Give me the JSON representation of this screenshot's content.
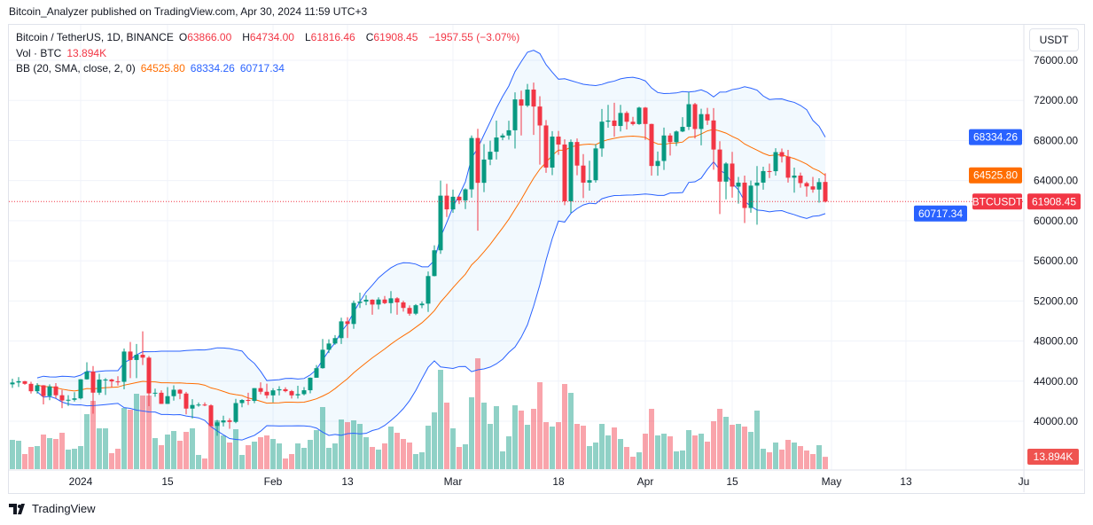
{
  "published": "Bitcoin_Analyzer published on TradingView.com, Apr 30, 2024 11:59 UTC+3",
  "legend": {
    "symbol": "Bitcoin / TetherUS, 1D, BINANCE",
    "open_label": "O",
    "open": "63866.00",
    "high_label": "H",
    "high": "64734.00",
    "low_label": "L",
    "low": "61816.46",
    "close_label": "C",
    "close": "61908.45",
    "change": "−1957.55 (−3.07%)",
    "vol_label": "Vol · BTC",
    "vol": "13.894K",
    "bb_label": "BB (20, SMA, close, 2, 0)",
    "bb_basis": "64525.80",
    "bb_upper": "68334.26",
    "bb_lower": "60717.34"
  },
  "currency_button": "USDT",
  "footer": {
    "brand": "TradingView"
  },
  "colors": {
    "up": "#089981",
    "down": "#f23645",
    "bb_band": "#2962ff",
    "bb_basis": "#ff6d00",
    "bb_fill": "#2196f3"
  },
  "price_tags": {
    "symbol": "BTCUSDT",
    "last": "61908.45",
    "upper": "68334.26",
    "basis": "64525.80",
    "lower": "60717.34",
    "volume": "13.894K"
  },
  "chart_data": {
    "type": "candlestick",
    "ylim": [
      38000,
      78000
    ],
    "y_ticks": [
      "76000.00",
      "72000.00",
      "68000.00",
      "64000.00",
      "60000.00",
      "56000.00",
      "52000.00",
      "48000.00",
      "44000.00",
      "40000.00"
    ],
    "x_ticks": [
      {
        "label": "2024",
        "date": "2024-01-01"
      },
      {
        "label": "15",
        "date": "2024-01-15"
      },
      {
        "label": "Feb",
        "date": "2024-02-01"
      },
      {
        "label": "13",
        "date": "2024-02-13"
      },
      {
        "label": "Mar",
        "date": "2024-03-01"
      },
      {
        "label": "18",
        "date": "2024-03-18"
      },
      {
        "label": "Apr",
        "date": "2024-04-01"
      },
      {
        "label": "15",
        "date": "2024-04-15"
      },
      {
        "label": "May",
        "date": "2024-05-01"
      },
      {
        "label": "13",
        "date": "2024-05-13"
      },
      {
        "label": "Ju",
        "date": "2024-06-01"
      }
    ],
    "grid": true,
    "indicator": "Bollinger Bands (20, SMA, close, 2)",
    "volume_unit": "K BTC",
    "candles_columns": [
      "date",
      "open",
      "high",
      "low",
      "close",
      "volume"
    ],
    "candles": [
      [
        "2023-12-21",
        43680,
        44240,
        43330,
        43860,
        33
      ],
      [
        "2023-12-22",
        43860,
        44400,
        43420,
        43990,
        32
      ],
      [
        "2023-12-23",
        43990,
        44020,
        43640,
        43730,
        17
      ],
      [
        "2023-12-24",
        43730,
        43940,
        42760,
        42990,
        25
      ],
      [
        "2023-12-25",
        42990,
        43800,
        42750,
        43580,
        26
      ],
      [
        "2023-12-26",
        43580,
        43600,
        41680,
        42510,
        39
      ],
      [
        "2023-12-27",
        42510,
        43680,
        42100,
        43470,
        35
      ],
      [
        "2023-12-28",
        43470,
        43800,
        42300,
        42590,
        34
      ],
      [
        "2023-12-29",
        42590,
        43130,
        41300,
        42070,
        41
      ],
      [
        "2023-12-30",
        42070,
        42600,
        41520,
        42140,
        22
      ],
      [
        "2023-12-31",
        42140,
        42900,
        41970,
        42280,
        23
      ],
      [
        "2024-01-01",
        42280,
        44200,
        42180,
        44180,
        26
      ],
      [
        "2024-01-02",
        44180,
        45880,
        44150,
        44950,
        62
      ],
      [
        "2024-01-03",
        44950,
        45500,
        40750,
        42850,
        77
      ],
      [
        "2024-01-04",
        42850,
        44730,
        42630,
        44150,
        46
      ],
      [
        "2024-01-05",
        44150,
        44300,
        42620,
        44160,
        46
      ],
      [
        "2024-01-06",
        44160,
        44230,
        43400,
        43970,
        18
      ],
      [
        "2024-01-07",
        43970,
        44490,
        43560,
        43930,
        23
      ],
      [
        "2024-01-08",
        43930,
        47250,
        43180,
        46950,
        69
      ],
      [
        "2024-01-09",
        46950,
        47900,
        44300,
        46110,
        67
      ],
      [
        "2024-01-10",
        46110,
        47700,
        44300,
        46630,
        85
      ],
      [
        "2024-01-11",
        46630,
        48970,
        45600,
        46340,
        83
      ],
      [
        "2024-01-12",
        46340,
        46500,
        41500,
        42780,
        83
      ],
      [
        "2024-01-13",
        42780,
        43250,
        42440,
        42840,
        35
      ],
      [
        "2024-01-14",
        42840,
        43080,
        41720,
        41730,
        27
      ],
      [
        "2024-01-15",
        41730,
        43400,
        41720,
        42500,
        39
      ],
      [
        "2024-01-16",
        42500,
        43580,
        42050,
        43140,
        43
      ],
      [
        "2024-01-17",
        43140,
        43200,
        42200,
        42760,
        32
      ],
      [
        "2024-01-18",
        42760,
        42930,
        40680,
        41260,
        42
      ],
      [
        "2024-01-19",
        41260,
        42200,
        40280,
        41620,
        46
      ],
      [
        "2024-01-20",
        41620,
        41870,
        41450,
        41660,
        16
      ],
      [
        "2024-01-21",
        41660,
        41880,
        41500,
        41580,
        12
      ],
      [
        "2024-01-22",
        41580,
        41690,
        39430,
        39530,
        50
      ],
      [
        "2024-01-23",
        39530,
        40130,
        38550,
        39880,
        55
      ],
      [
        "2024-01-24",
        39880,
        40550,
        39480,
        40080,
        38
      ],
      [
        "2024-01-25",
        40080,
        40300,
        39250,
        39930,
        30
      ],
      [
        "2024-01-26",
        39930,
        42230,
        39800,
        41810,
        45
      ],
      [
        "2024-01-27",
        41810,
        42200,
        41390,
        42120,
        16
      ],
      [
        "2024-01-28",
        42120,
        42840,
        41620,
        42030,
        27
      ],
      [
        "2024-01-29",
        42030,
        43300,
        41800,
        43300,
        31
      ],
      [
        "2024-01-30",
        43300,
        43880,
        42690,
        42940,
        36
      ],
      [
        "2024-01-31",
        42940,
        43750,
        42280,
        42580,
        38
      ],
      [
        "2024-02-01",
        42580,
        43290,
        41880,
        43080,
        34
      ],
      [
        "2024-02-02",
        43080,
        43490,
        42580,
        43190,
        29
      ],
      [
        "2024-02-03",
        43190,
        43380,
        42880,
        43000,
        12
      ],
      [
        "2024-02-04",
        43000,
        43120,
        42260,
        42580,
        17
      ],
      [
        "2024-02-05",
        42580,
        43540,
        42260,
        42700,
        29
      ],
      [
        "2024-02-06",
        42700,
        43400,
        42570,
        43090,
        24
      ],
      [
        "2024-02-07",
        43090,
        44370,
        42780,
        44340,
        33
      ],
      [
        "2024-02-08",
        44340,
        45600,
        44330,
        45290,
        44
      ],
      [
        "2024-02-09",
        45290,
        48200,
        45240,
        47130,
        70
      ],
      [
        "2024-02-10",
        47130,
        48170,
        46800,
        47750,
        24
      ],
      [
        "2024-02-11",
        47750,
        48590,
        47630,
        48290,
        29
      ],
      [
        "2024-02-12",
        48290,
        50330,
        47710,
        49960,
        56
      ],
      [
        "2024-02-13",
        49960,
        50370,
        48300,
        49700,
        53
      ],
      [
        "2024-02-14",
        49700,
        52040,
        49220,
        51800,
        55
      ],
      [
        "2024-02-15",
        51800,
        52820,
        51300,
        51930,
        51
      ],
      [
        "2024-02-16",
        51930,
        52570,
        51570,
        52120,
        36
      ],
      [
        "2024-02-17",
        52120,
        52160,
        50620,
        51640,
        25
      ],
      [
        "2024-02-18",
        51640,
        52360,
        51170,
        52140,
        22
      ],
      [
        "2024-02-19",
        52140,
        52490,
        51680,
        51780,
        29
      ],
      [
        "2024-02-20",
        51780,
        52980,
        50760,
        52260,
        48
      ],
      [
        "2024-02-21",
        52260,
        52370,
        50620,
        51850,
        41
      ],
      [
        "2024-02-22",
        51850,
        52030,
        50930,
        51300,
        34
      ],
      [
        "2024-02-23",
        51300,
        51550,
        50520,
        50730,
        30
      ],
      [
        "2024-02-24",
        50730,
        51690,
        50590,
        51570,
        17
      ],
      [
        "2024-02-25",
        51570,
        51950,
        51280,
        51730,
        19
      ],
      [
        "2024-02-26",
        51730,
        54940,
        50900,
        54480,
        49
      ],
      [
        "2024-02-27",
        54480,
        57550,
        54450,
        57050,
        64
      ],
      [
        "2024-02-28",
        57050,
        64000,
        56690,
        62500,
        112
      ],
      [
        "2024-02-29",
        62500,
        63680,
        60360,
        61130,
        75
      ],
      [
        "2024-03-01",
        61130,
        63110,
        60780,
        62390,
        46
      ],
      [
        "2024-03-02",
        62390,
        62430,
        61660,
        62030,
        25
      ],
      [
        "2024-03-03",
        62030,
        63230,
        61160,
        63130,
        28
      ],
      [
        "2024-03-04",
        63130,
        68500,
        62300,
        68250,
        81
      ],
      [
        "2024-03-05",
        68250,
        69170,
        59000,
        63780,
        125
      ],
      [
        "2024-03-06",
        63780,
        67640,
        62850,
        66100,
        75
      ],
      [
        "2024-03-07",
        66100,
        67980,
        65540,
        66880,
        51
      ],
      [
        "2024-03-08",
        66880,
        69990,
        66100,
        68300,
        71
      ],
      [
        "2024-03-09",
        68300,
        68700,
        68030,
        68500,
        20
      ],
      [
        "2024-03-10",
        68500,
        69970,
        68080,
        69020,
        37
      ],
      [
        "2024-03-11",
        69020,
        72800,
        67200,
        72100,
        72
      ],
      [
        "2024-03-12",
        72100,
        72970,
        68500,
        71480,
        66
      ],
      [
        "2024-03-13",
        71480,
        73650,
        71330,
        73080,
        50
      ],
      [
        "2024-03-14",
        73080,
        73780,
        68560,
        71390,
        68
      ],
      [
        "2024-03-15",
        71390,
        72420,
        65600,
        69500,
        98
      ],
      [
        "2024-03-16",
        69500,
        70040,
        64780,
        65300,
        53
      ],
      [
        "2024-03-17",
        65300,
        68930,
        64550,
        68390,
        48
      ],
      [
        "2024-03-18",
        68390,
        68960,
        66570,
        67600,
        53
      ],
      [
        "2024-03-19",
        67600,
        68120,
        61550,
        61940,
        96
      ],
      [
        "2024-03-20",
        61940,
        68100,
        60780,
        67850,
        86
      ],
      [
        "2024-03-21",
        67850,
        68200,
        64530,
        65500,
        51
      ],
      [
        "2024-03-22",
        65500,
        66650,
        62260,
        63800,
        49
      ],
      [
        "2024-03-23",
        63800,
        65980,
        63000,
        64040,
        26
      ],
      [
        "2024-03-24",
        64040,
        67630,
        63800,
        67210,
        30
      ],
      [
        "2024-03-25",
        67210,
        71150,
        66380,
        69880,
        51
      ],
      [
        "2024-03-26",
        69880,
        71560,
        69280,
        69990,
        38
      ],
      [
        "2024-03-27",
        69990,
        71770,
        68370,
        69450,
        47
      ],
      [
        "2024-03-28",
        69450,
        71550,
        68900,
        70750,
        34
      ],
      [
        "2024-03-29",
        70750,
        70920,
        69100,
        69870,
        25
      ],
      [
        "2024-03-30",
        69870,
        70360,
        69500,
        69640,
        14
      ],
      [
        "2024-03-31",
        69640,
        71370,
        69560,
        71280,
        19
      ],
      [
        "2024-04-01",
        71280,
        71340,
        68060,
        69650,
        40
      ],
      [
        "2024-04-02",
        69650,
        69680,
        64500,
        65460,
        68
      ],
      [
        "2024-04-03",
        65460,
        66900,
        64490,
        65960,
        38
      ],
      [
        "2024-04-04",
        65960,
        69290,
        65070,
        68500,
        40
      ],
      [
        "2024-04-05",
        68500,
        68720,
        66500,
        67840,
        37
      ],
      [
        "2024-04-06",
        67840,
        69000,
        67450,
        68900,
        20
      ],
      [
        "2024-04-07",
        68900,
        70330,
        68840,
        69360,
        21
      ],
      [
        "2024-04-08",
        69360,
        72800,
        69040,
        71620,
        44
      ],
      [
        "2024-04-09",
        71620,
        71750,
        68210,
        69150,
        38
      ],
      [
        "2024-04-10",
        69150,
        71170,
        67520,
        70630,
        40
      ],
      [
        "2024-04-11",
        70630,
        71260,
        69550,
        70000,
        31
      ],
      [
        "2024-04-12",
        70000,
        71230,
        65090,
        67100,
        54
      ],
      [
        "2024-04-13",
        67100,
        67930,
        60660,
        63900,
        68
      ],
      [
        "2024-04-14",
        63900,
        65840,
        62130,
        65700,
        59
      ],
      [
        "2024-04-15",
        65700,
        66870,
        62300,
        63400,
        50
      ],
      [
        "2024-04-16",
        63400,
        64370,
        61700,
        63800,
        51
      ],
      [
        "2024-04-17",
        63800,
        64500,
        59770,
        61270,
        48
      ],
      [
        "2024-04-18",
        61270,
        64000,
        60800,
        63500,
        42
      ],
      [
        "2024-04-19",
        63500,
        65450,
        59600,
        63800,
        66
      ],
      [
        "2024-04-20",
        63800,
        65390,
        63100,
        64950,
        23
      ],
      [
        "2024-04-21",
        64950,
        65700,
        64260,
        64940,
        19
      ],
      [
        "2024-04-22",
        64940,
        67230,
        64500,
        66840,
        30
      ],
      [
        "2024-04-23",
        66840,
        67200,
        65800,
        66400,
        22
      ],
      [
        "2024-04-24",
        66400,
        67070,
        63800,
        64290,
        33
      ],
      [
        "2024-04-25",
        64290,
        65300,
        62800,
        64500,
        30
      ],
      [
        "2024-04-26",
        64500,
        64800,
        63300,
        63750,
        26
      ],
      [
        "2024-04-27",
        63750,
        63900,
        62400,
        63420,
        21
      ],
      [
        "2024-04-28",
        63420,
        64370,
        62800,
        63110,
        17
      ],
      [
        "2024-04-29",
        63110,
        64230,
        61800,
        63850,
        27
      ],
      [
        "2024-04-30",
        63866,
        64734,
        61816.46,
        61908.45,
        13.894
      ]
    ]
  }
}
